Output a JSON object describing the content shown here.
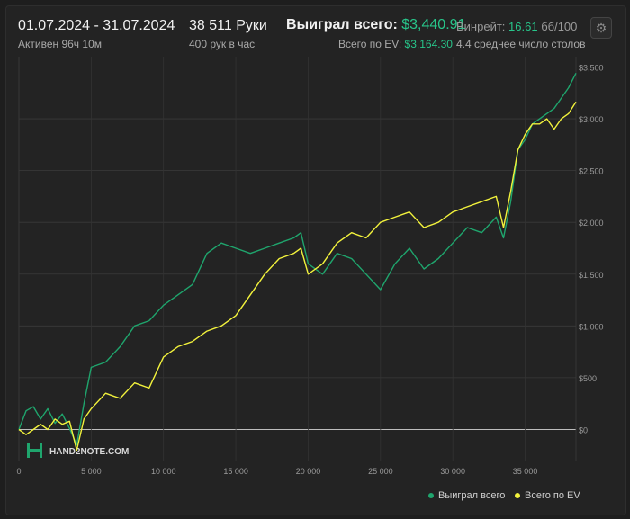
{
  "header": {
    "date_range": "01.07.2024 - 31.07.2024",
    "active": "Активен 96ч 10м",
    "hands": "38 511 Руки",
    "hands_per_hour": "400 рук в час",
    "won_label": "Выиграл всего:",
    "won_value": "$3,440.91",
    "ev_label": "Всего по EV:",
    "ev_value": "$3,164.30",
    "winrate_label": "Винрейт:",
    "winrate_value": "16.61",
    "winrate_unit": "бб/100",
    "avg_tables": "4.4 среднее число столов",
    "settings_icon": "gear-icon"
  },
  "watermark": {
    "text": "HAND2NOTE.COM",
    "logo": "hand2note-logo"
  },
  "legend": {
    "won": "Выиграл всего",
    "ev": "Всего по EV"
  },
  "colors": {
    "won": "#1fa56d",
    "ev": "#f2f23c",
    "background": "#232323",
    "grid": "#3a3a3a"
  },
  "chart_data": {
    "type": "line",
    "x_ticks": [
      "0",
      "5 000",
      "10 000",
      "15 000",
      "20 000",
      "25 000",
      "30 000",
      "35 000"
    ],
    "y_ticks": [
      "$0",
      "$500",
      "$1,000",
      "$1,500",
      "$2,000",
      "$2,500",
      "$3,000",
      "$3,500"
    ],
    "xlim": [
      0,
      38511
    ],
    "ylim": [
      -300,
      3600
    ],
    "grid": true,
    "legend_position": "bottom-right",
    "series": [
      {
        "name": "Выиграл всего",
        "color": "#1fa56d",
        "x": [
          0,
          500,
          1000,
          1500,
          2000,
          2500,
          3000,
          3500,
          4000,
          4500,
          5000,
          6000,
          7000,
          8000,
          9000,
          10000,
          11000,
          12000,
          13000,
          14000,
          15000,
          16000,
          17000,
          18000,
          19000,
          19500,
          20000,
          21000,
          22000,
          23000,
          24000,
          25000,
          26000,
          27000,
          28000,
          29000,
          30000,
          31000,
          32000,
          33000,
          33500,
          34000,
          34500,
          35000,
          35500,
          36000,
          36500,
          37000,
          37500,
          38000,
          38511
        ],
        "y": [
          0,
          180,
          220,
          100,
          200,
          60,
          150,
          10,
          -150,
          250,
          600,
          650,
          800,
          1000,
          1050,
          1200,
          1300,
          1400,
          1700,
          1800,
          1750,
          1700,
          1750,
          1800,
          1850,
          1900,
          1600,
          1500,
          1700,
          1650,
          1500,
          1350,
          1600,
          1750,
          1550,
          1650,
          1800,
          1950,
          1900,
          2050,
          1850,
          2200,
          2700,
          2800,
          2950,
          3000,
          3050,
          3100,
          3200,
          3300,
          3440.91
        ]
      },
      {
        "name": "Всего по EV",
        "color": "#f2f23c",
        "x": [
          0,
          500,
          1000,
          1500,
          2000,
          2500,
          3000,
          3500,
          4000,
          4500,
          5000,
          6000,
          7000,
          8000,
          9000,
          10000,
          11000,
          12000,
          13000,
          14000,
          15000,
          16000,
          17000,
          18000,
          19000,
          19500,
          20000,
          21000,
          22000,
          23000,
          24000,
          25000,
          26000,
          27000,
          28000,
          29000,
          30000,
          31000,
          32000,
          33000,
          33500,
          34000,
          34500,
          35000,
          35500,
          36000,
          36500,
          37000,
          37500,
          38000,
          38511
        ],
        "y": [
          0,
          -50,
          0,
          50,
          0,
          100,
          50,
          80,
          -200,
          100,
          200,
          350,
          300,
          450,
          400,
          700,
          800,
          850,
          950,
          1000,
          1100,
          1300,
          1500,
          1650,
          1700,
          1750,
          1500,
          1600,
          1800,
          1900,
          1850,
          2000,
          2050,
          2100,
          1950,
          2000,
          2100,
          2150,
          2200,
          2250,
          1950,
          2300,
          2700,
          2850,
          2950,
          2950,
          3000,
          2900,
          3000,
          3050,
          3164.3
        ]
      }
    ]
  }
}
